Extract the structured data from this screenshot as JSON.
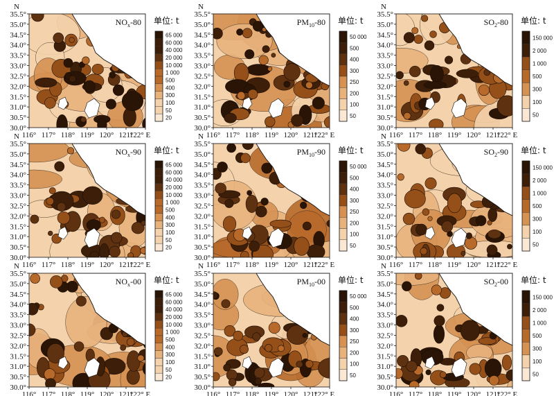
{
  "figure": {
    "north_label": "N",
    "lat_ticks": [
      "35.5°",
      "35.0°",
      "34.5°",
      "34.0°",
      "33.5°",
      "33.0°",
      "32.5°",
      "32.0°",
      "31.5°",
      "31.0°",
      "30.5°",
      "30.0°"
    ],
    "lon_ticks": [
      "116°",
      "117°",
      "118°",
      "119°",
      "120°",
      "121°",
      "122° E"
    ],
    "unit_label": "单位: t"
  },
  "colors": {
    "ramp": [
      "#fbe8d4",
      "#f3d2ac",
      "#e8b27d",
      "#d69253",
      "#b86a2b",
      "#955019",
      "#5e3110",
      "#3d1e09",
      "#2a1405"
    ],
    "land": "#fbe8d4",
    "water": "#ffffff"
  },
  "legends": {
    "nox": [
      "65 000",
      "60 000",
      "40 000",
      "20 000",
      "10 000",
      "1 000",
      "500",
      "400",
      "300",
      "100",
      "50",
      "20"
    ],
    "pm10": [
      "50 000",
      "500",
      "400",
      "300",
      "250",
      "200",
      "100",
      "50"
    ],
    "so2": [
      "150 000",
      "2 000",
      "1 000",
      "500",
      "300",
      "100",
      "50"
    ]
  },
  "panels": [
    {
      "title": "NOx-80",
      "title_main": "NO",
      "title_sub": "x",
      "title_suffix": "-80",
      "legend": "nox",
      "intensity": 0.38
    },
    {
      "title": "PM10-80",
      "title_main": "PM",
      "title_sub": "10",
      "title_suffix": "-80",
      "legend": "pm10",
      "intensity": 0.62
    },
    {
      "title": "SO2-80",
      "title_main": "SO",
      "title_sub": "2",
      "title_suffix": "-80",
      "legend": "so2",
      "intensity": 0.42
    },
    {
      "title": "NOx-90",
      "title_main": "NO",
      "title_sub": "x",
      "title_suffix": "-90",
      "legend": "nox",
      "intensity": 0.33
    },
    {
      "title": "PM10-90",
      "title_main": "PM",
      "title_sub": "10",
      "title_suffix": "-90",
      "legend": "pm10",
      "intensity": 0.7
    },
    {
      "title": "SO2-90",
      "title_main": "SO",
      "title_sub": "2",
      "title_suffix": "-90",
      "legend": "so2",
      "intensity": 0.36
    },
    {
      "title": "NOx-00",
      "title_main": "NO",
      "title_sub": "x",
      "title_suffix": "-00",
      "legend": "nox",
      "intensity": 0.52
    },
    {
      "title": "PM10-00",
      "title_main": "PM",
      "title_sub": "10",
      "title_suffix": "-00",
      "legend": "pm10",
      "intensity": 0.72
    },
    {
      "title": "SO2-00",
      "title_main": "SO",
      "title_sub": "2",
      "title_suffix": "-00",
      "legend": "so2",
      "intensity": 0.47
    }
  ]
}
